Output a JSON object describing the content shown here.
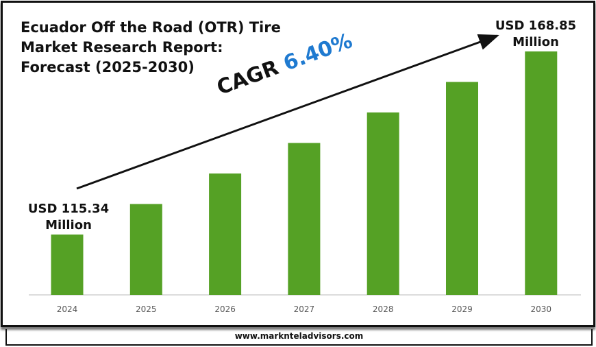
{
  "chart_data": {
    "type": "bar",
    "title": "Ecuador Off the Road (OTR) Tire Market Research Report: Forecast (2025-2030)",
    "categories": [
      "2024",
      "2025",
      "2026",
      "2027",
      "2028",
      "2029",
      "2030"
    ],
    "values": [
      115.34,
      124.26,
      133.18,
      142.1,
      151.01,
      159.93,
      168.85
    ],
    "unit": "USD Million",
    "ylim": [
      97.7,
      175
    ],
    "grid": false,
    "bar_color": "#55a125",
    "annotations": {
      "start_label_1": "USD 115.34",
      "start_label_2": "Million",
      "end_label_1": "USD 168.85",
      "end_label_2": "Million",
      "cagr_prefix": "CAGR",
      "cagr_value": "6.40%",
      "cagr_color": "#1f7ad0"
    }
  },
  "footer": "www.marknteladvisors.com"
}
